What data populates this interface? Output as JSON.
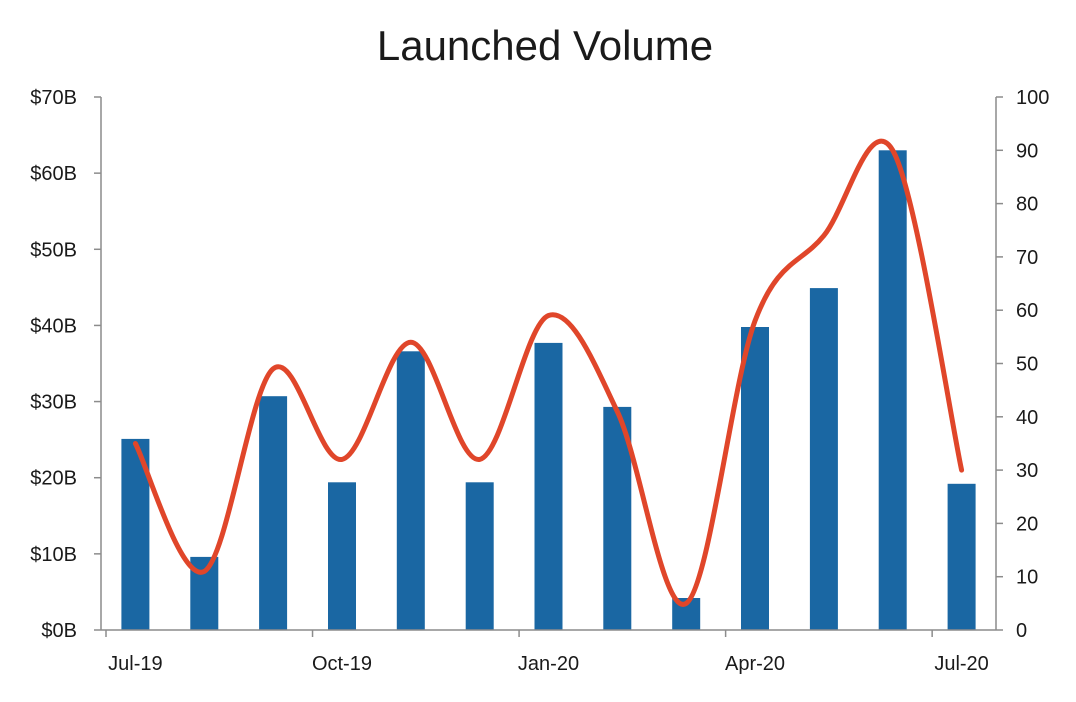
{
  "chart_data": {
    "type": "bar",
    "title": "Launched Volume",
    "xlabel": "",
    "ylabel": "",
    "x_tick_labels": [
      "Jul-19",
      "Oct-19",
      "Jan-20",
      "Apr-20",
      "Jul-20"
    ],
    "categories": [
      "Jul-19",
      "Aug-19",
      "Sep-19",
      "Oct-19",
      "Nov-19",
      "Dec-19",
      "Jan-20",
      "Feb-20",
      "Mar-20",
      "Apr-20",
      "May-20",
      "Jun-20",
      "Jul-20"
    ],
    "y_left": {
      "ylim": [
        0,
        70
      ],
      "ticks": [
        0,
        10,
        20,
        30,
        40,
        50,
        60,
        70
      ],
      "tick_labels": [
        "$0B",
        "$10B",
        "$20B",
        "$30B",
        "$40B",
        "$50B",
        "$60B",
        "$70B"
      ]
    },
    "y_right": {
      "ylim": [
        0,
        100
      ],
      "ticks": [
        0,
        10,
        20,
        30,
        40,
        50,
        60,
        70,
        80,
        90,
        100
      ],
      "tick_labels": [
        "0",
        "10",
        "20",
        "30",
        "40",
        "50",
        "60",
        "70",
        "80",
        "90",
        "100"
      ]
    },
    "series": [
      {
        "type": "bar",
        "axis": "left",
        "color": "#1a67a3",
        "values": [
          25.1,
          9.6,
          30.7,
          19.4,
          36.6,
          19.4,
          37.7,
          29.3,
          4.2,
          39.8,
          44.9,
          63.0,
          19.2
        ]
      },
      {
        "type": "line",
        "axis": "right",
        "color": "#e0462a",
        "smooth": true,
        "values": [
          35,
          11,
          49,
          32,
          54,
          32,
          59,
          41,
          5,
          58,
          74,
          90,
          30
        ]
      }
    ],
    "grid": false,
    "legend": "none"
  }
}
